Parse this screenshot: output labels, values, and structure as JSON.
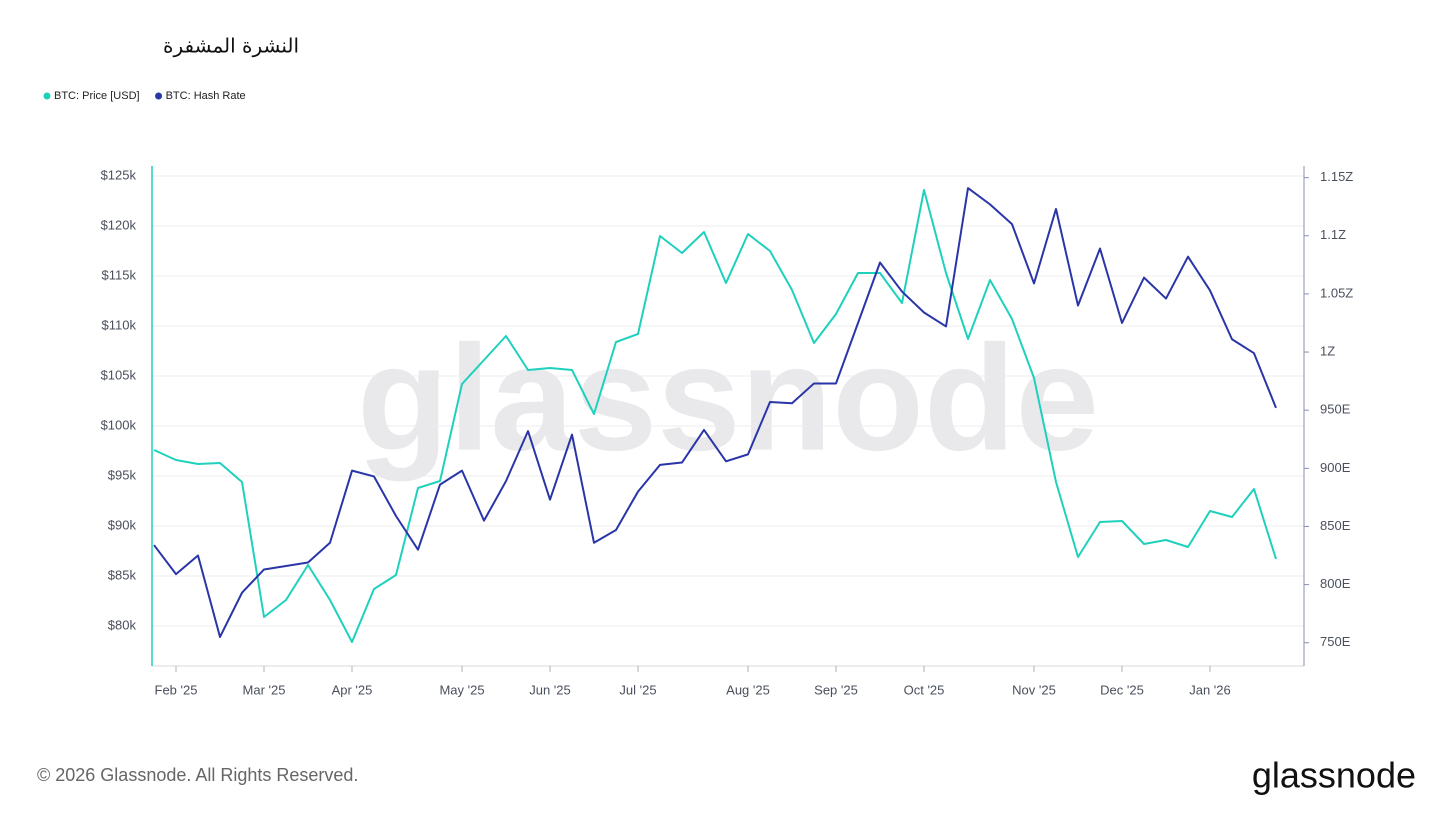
{
  "chart_data": {
    "type": "line",
    "title": "النشرة المشفرة",
    "watermark": "glassnode",
    "categories": [
      null,
      "Feb '25",
      null,
      null,
      null,
      "Mar '25",
      null,
      null,
      null,
      "Apr '25",
      null,
      null,
      null,
      null,
      "May '25",
      null,
      null,
      null,
      "Jun '25",
      null,
      null,
      null,
      "Jul '25",
      null,
      null,
      null,
      null,
      "Aug '25",
      null,
      null,
      null,
      "Sep '25",
      null,
      null,
      null,
      "Oct '25",
      null,
      null,
      null,
      null,
      "Nov '25",
      null,
      null,
      null,
      "Dec '25",
      null,
      null,
      null,
      "Jan '26",
      null,
      null,
      null
    ],
    "series": [
      {
        "name": "BTC: Price [USD]",
        "color": "#1fd1bd",
        "values": [
          97600,
          96600,
          96200,
          96300,
          94400,
          80900,
          82600,
          86100,
          82600,
          78400,
          83700,
          85100,
          93800,
          94500,
          104200,
          106600,
          109000,
          105600,
          105800,
          105600,
          101200,
          108400,
          109200,
          119000,
          117300,
          119400,
          114300,
          119200,
          117500,
          113600,
          108300,
          111200,
          115300,
          115300,
          112300,
          123600,
          115300,
          108700,
          114600,
          110700,
          104800,
          94400,
          86900,
          90400,
          90500,
          88200,
          88600,
          87900,
          91500,
          90900,
          93700,
          86700
        ]
      },
      {
        "name": "BTC: Hash Rate",
        "color": "#2a35a8",
        "axis": "y2",
        "values": [
          834,
          809,
          825,
          755,
          793,
          813,
          816,
          819,
          836,
          898,
          893,
          859,
          830,
          886,
          898,
          855,
          889,
          932,
          873,
          929,
          836,
          847,
          880,
          903,
          905,
          933,
          906,
          912,
          957,
          956,
          973,
          973,
          1025,
          1077,
          1052,
          1034,
          1022,
          1141,
          1127,
          1110,
          1059,
          1123,
          1040,
          1089,
          1025,
          1064,
          1046,
          1082,
          1053,
          1011,
          999,
          952
        ]
      }
    ],
    "ylim": [
      76000,
      126000
    ],
    "yticks": [
      {
        "value": 80000,
        "label": "$80k"
      },
      {
        "value": 85000,
        "label": "$85k"
      },
      {
        "value": 90000,
        "label": "$90k"
      },
      {
        "value": 95000,
        "label": "$95k"
      },
      {
        "value": 100000,
        "label": "$100k"
      },
      {
        "value": 105000,
        "label": "$105k"
      },
      {
        "value": 110000,
        "label": "$110k"
      },
      {
        "value": 115000,
        "label": "$115k"
      },
      {
        "value": 120000,
        "label": "$120k"
      },
      {
        "value": 125000,
        "label": "$125k"
      }
    ],
    "y2lim": [
      730,
      1160
    ],
    "y2ticks": [
      {
        "value": 750,
        "label": "750E"
      },
      {
        "value": 800,
        "label": "800E"
      },
      {
        "value": 850,
        "label": "850E"
      },
      {
        "value": 900,
        "label": "900E"
      },
      {
        "value": 950,
        "label": "950E"
      },
      {
        "value": 1000,
        "label": "1Z"
      },
      {
        "value": 1050,
        "label": "1.05Z"
      },
      {
        "value": 1100,
        "label": "1.1Z"
      },
      {
        "value": 1150,
        "label": "1.15Z"
      }
    ],
    "grid": true,
    "legend": "top-left"
  },
  "footer": {
    "copyright": "© 2026 Glassnode. All Rights Reserved.",
    "logo": "glassnode"
  }
}
